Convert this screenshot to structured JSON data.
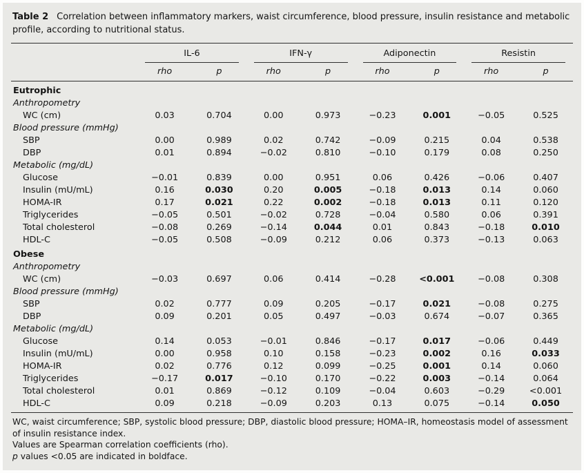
{
  "table": {
    "label": "Table 2",
    "caption": "Correlation between inflammatory markers, waist circumference, blood pressure, insulin resistance and metabolic profile, according to nutritional status.",
    "col_groups": [
      "IL-6",
      "IFN-γ",
      "Adiponectin",
      "Resistin"
    ],
    "sub_headers": [
      "rho",
      "p"
    ],
    "rows": [
      {
        "type": "section",
        "label": "Eutrophic"
      },
      {
        "type": "subsection",
        "label": "Anthropometry"
      },
      {
        "type": "data",
        "label": "WC (cm)",
        "values": [
          "0.03",
          "0.704",
          "0.00",
          "0.973",
          "−0.23",
          "0.001",
          "−0.05",
          "0.525"
        ],
        "bold": [
          5
        ]
      },
      {
        "type": "subsection",
        "label": "Blood pressure (mmHg)"
      },
      {
        "type": "data",
        "label": "SBP",
        "values": [
          "0.00",
          "0.989",
          "0.02",
          "0.742",
          "−0.09",
          "0.215",
          "0.04",
          "0.538"
        ],
        "bold": []
      },
      {
        "type": "data",
        "label": "DBP",
        "values": [
          "0.01",
          "0.894",
          "−0.02",
          "0.810",
          "−0.10",
          "0.179",
          "0.08",
          "0.250"
        ],
        "bold": []
      },
      {
        "type": "subsection",
        "label": "Metabolic (mg/dL)"
      },
      {
        "type": "data",
        "label": "Glucose",
        "values": [
          "−0.01",
          "0.839",
          "0.00",
          "0.951",
          "0.06",
          "0.426",
          "−0.06",
          "0.407"
        ],
        "bold": []
      },
      {
        "type": "data",
        "label": "Insulin (mU/mL)",
        "values": [
          "0.16",
          "0.030",
          "0.20",
          "0.005",
          "−0.18",
          "0.013",
          "0.14",
          "0.060"
        ],
        "bold": [
          1,
          3,
          5
        ]
      },
      {
        "type": "data",
        "label": "HOMA-IR",
        "values": [
          "0.17",
          "0.021",
          "0.22",
          "0.002",
          "−0.18",
          "0.013",
          "0.11",
          "0.120"
        ],
        "bold": [
          1,
          3,
          5
        ]
      },
      {
        "type": "data",
        "label": "Triglycerides",
        "values": [
          "−0.05",
          "0.501",
          "−0.02",
          "0.728",
          "−0.04",
          "0.580",
          "0.06",
          "0.391"
        ],
        "bold": []
      },
      {
        "type": "data",
        "label": "Total cholesterol",
        "values": [
          "−0.08",
          "0.269",
          "−0.14",
          "0.044",
          "0.01",
          "0.843",
          "−0.18",
          "0.010"
        ],
        "bold": [
          3,
          7
        ]
      },
      {
        "type": "data",
        "label": "HDL-C",
        "values": [
          "−0.05",
          "0.508",
          "−0.09",
          "0.212",
          "0.06",
          "0.373",
          "−0.13",
          "0.063"
        ],
        "bold": []
      },
      {
        "type": "section",
        "label": "Obese"
      },
      {
        "type": "subsection",
        "label": "Anthropometry"
      },
      {
        "type": "data",
        "label": "WC (cm)",
        "values": [
          "−0.03",
          "0.697",
          "0.06",
          "0.414",
          "−0.28",
          "<0.001",
          "−0.08",
          "0.308"
        ],
        "bold": [
          5
        ]
      },
      {
        "type": "subsection",
        "label": "Blood pressure (mmHg)"
      },
      {
        "type": "data",
        "label": "SBP",
        "values": [
          "0.02",
          "0.777",
          "0.09",
          "0.205",
          "−0.17",
          "0.021",
          "−0.08",
          "0.275"
        ],
        "bold": [
          5
        ]
      },
      {
        "type": "data",
        "label": "DBP",
        "values": [
          "0.09",
          "0.201",
          "0.05",
          "0.497",
          "−0.03",
          "0.674",
          "−0.07",
          "0.365"
        ],
        "bold": []
      },
      {
        "type": "subsection",
        "label": "Metabolic (mg/dL)"
      },
      {
        "type": "data",
        "label": "Glucose",
        "values": [
          "0.14",
          "0.053",
          "−0.01",
          "0.846",
          "−0.17",
          "0.017",
          "−0.06",
          "0.449"
        ],
        "bold": [
          5
        ]
      },
      {
        "type": "data",
        "label": "Insulin (mU/mL)",
        "values": [
          "0.00",
          "0.958",
          "0.10",
          "0.158",
          "−0.23",
          "0.002",
          "0.16",
          "0.033"
        ],
        "bold": [
          5,
          7
        ]
      },
      {
        "type": "data",
        "label": "HOMA-IR",
        "values": [
          "0.02",
          "0.776",
          "0.12",
          "0.099",
          "−0.25",
          "0.001",
          "0.14",
          "0.060"
        ],
        "bold": [
          5
        ]
      },
      {
        "type": "data",
        "label": "Triglycerides",
        "values": [
          "−0.17",
          "0.017",
          "−0.10",
          "0.170",
          "−0.22",
          "0.003",
          "−0.14",
          "0.064"
        ],
        "bold": [
          1,
          5
        ]
      },
      {
        "type": "data",
        "label": "Total cholesterol",
        "values": [
          "0.01",
          "0.869",
          "−0.12",
          "0.109",
          "−0.04",
          "0.603",
          "−0.29",
          "<0.001"
        ],
        "bold": []
      },
      {
        "type": "data",
        "label": "HDL-C",
        "values": [
          "0.09",
          "0.218",
          "−0.09",
          "0.203",
          "0.13",
          "0.075",
          "−0.14",
          "0.050"
        ],
        "bold": [
          7
        ]
      }
    ],
    "footnotes": [
      {
        "text": "WC, waist circumference; SBP, systolic blood pressure; DBP, diastolic blood pressure; HOMA–IR, homeostasis model of assessment of insulin resistance index."
      },
      {
        "text": "Values are Spearman correlation coefficients (rho)."
      },
      {
        "italic_prefix": "p",
        "text": " values <0.05 are indicated in boldface."
      }
    ]
  }
}
